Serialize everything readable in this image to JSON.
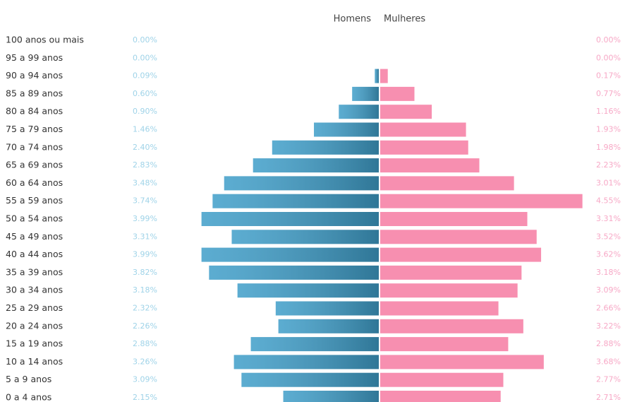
{
  "chart_data": {
    "type": "pyramid",
    "categories": [
      "100 anos ou mais",
      "95 a 99 anos",
      "90 a 94 anos",
      "85 a 89 anos",
      "80 a 84 anos",
      "75 a 79 anos",
      "70 a 74 anos",
      "65 a 69 anos",
      "60 a 64 anos",
      "55 a 59 anos",
      "50 a 54 anos",
      "45 a 49 anos",
      "40 a 44 anos",
      "35 a 39 anos",
      "30 a 34 anos",
      "25 a 29 anos",
      "20 a 24 anos",
      "15 a 19 anos",
      "10 a 14 anos",
      "5 a 9 anos",
      "0 a 4 anos"
    ],
    "xlim": [
      0,
      5
    ],
    "series": [
      {
        "name": "Homens",
        "color": "#3f9ec9",
        "label_color": "#9fd3e8",
        "values": [
          0,
          0,
          0.09,
          0.6,
          0.9,
          1.46,
          2.4,
          2.83,
          3.48,
          3.74,
          3.99,
          3.31,
          3.99,
          3.82,
          3.18,
          2.32,
          2.26,
          2.88,
          3.26,
          3.09,
          2.15
        ],
        "value_labels": [
          "0.00%",
          "0.00%",
          "0.09%",
          "0.60%",
          "0.90%",
          "1.46%",
          "2.40%",
          "2.83%",
          "3.48%",
          "3.74%",
          "3.99%",
          "3.31%",
          "3.99%",
          "3.82%",
          "3.18%",
          "2.32%",
          "2.26%",
          "2.88%",
          "3.26%",
          "3.09%",
          "2.15%"
        ]
      },
      {
        "name": "Mulheres",
        "color": "#f78fb0",
        "label_color": "#f7a8c6",
        "values": [
          0,
          0,
          0.17,
          0.77,
          1.16,
          1.93,
          1.98,
          2.23,
          3.01,
          4.55,
          3.31,
          3.52,
          3.62,
          3.18,
          3.09,
          2.66,
          3.22,
          2.88,
          3.68,
          2.77,
          2.71
        ],
        "value_labels": [
          "0.00%",
          "0.00%",
          "0.17%",
          "0.77%",
          "1.16%",
          "1.93%",
          "1.98%",
          "2.23%",
          "3.01%",
          "4.55%",
          "3.31%",
          "3.52%",
          "3.62%",
          "3.18%",
          "3.09%",
          "2.66%",
          "3.22%",
          "2.88%",
          "3.68%",
          "2.77%",
          "2.71%"
        ]
      }
    ]
  }
}
